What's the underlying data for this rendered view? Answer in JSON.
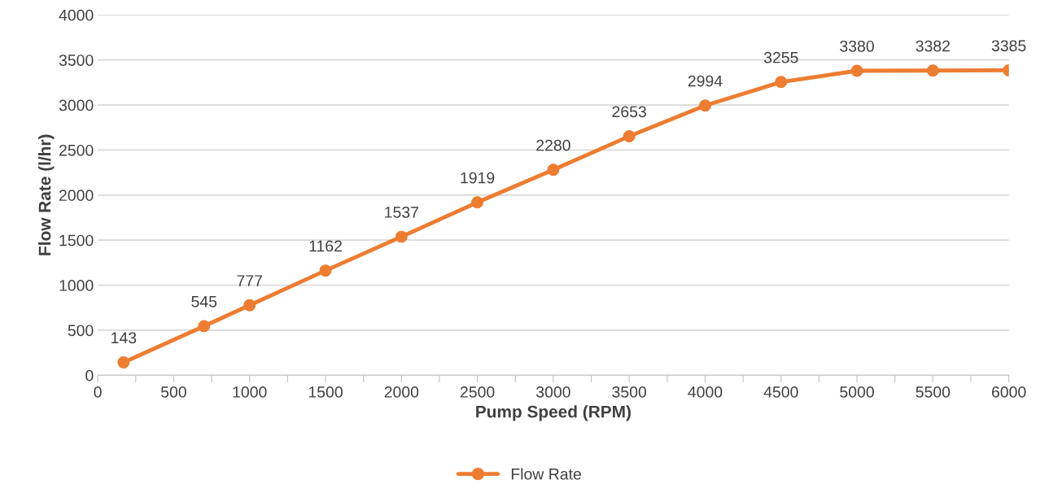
{
  "chart_data": {
    "type": "line",
    "xlabel": "Pump Speed (RPM)",
    "ylabel": "Flow Rate (l/hr)",
    "x": [
      170,
      700,
      1000,
      1500,
      2000,
      2500,
      3000,
      3500,
      4000,
      4500,
      5000,
      5500,
      6000
    ],
    "series": [
      {
        "name": "Flow Rate",
        "color": "#ed7d31",
        "values": [
          143,
          545,
          777,
          1162,
          1537,
          1919,
          2280,
          2653,
          2994,
          3255,
          3380,
          3382,
          3385
        ]
      }
    ],
    "xlim": [
      0,
      6000
    ],
    "xticks": [
      0,
      {
        "value": 250,
        "label": null
      },
      500,
      {
        "value": 750,
        "label": null
      },
      1000,
      {
        "value": 1250,
        "label": null
      },
      1500,
      {
        "value": 1750,
        "label": null
      },
      2000,
      {
        "value": 2250,
        "label": null
      },
      2500,
      {
        "value": 2750,
        "label": null
      },
      3000,
      {
        "value": 3250,
        "label": null
      },
      3500,
      {
        "value": 3750,
        "label": null
      },
      4000,
      {
        "value": 4250,
        "label": null
      },
      4500,
      {
        "value": 4750,
        "label": null
      },
      5000,
      {
        "value": 5250,
        "label": null
      },
      5500,
      {
        "value": 5750,
        "label": null
      },
      6000
    ],
    "ylim": [
      0,
      4000
    ],
    "yticks": [
      0,
      500,
      1000,
      1500,
      2000,
      2500,
      3000,
      3500,
      4000
    ],
    "grid": "y",
    "legend": "bottom",
    "marker": "circle",
    "line_style": "solid",
    "data_labels": true
  }
}
